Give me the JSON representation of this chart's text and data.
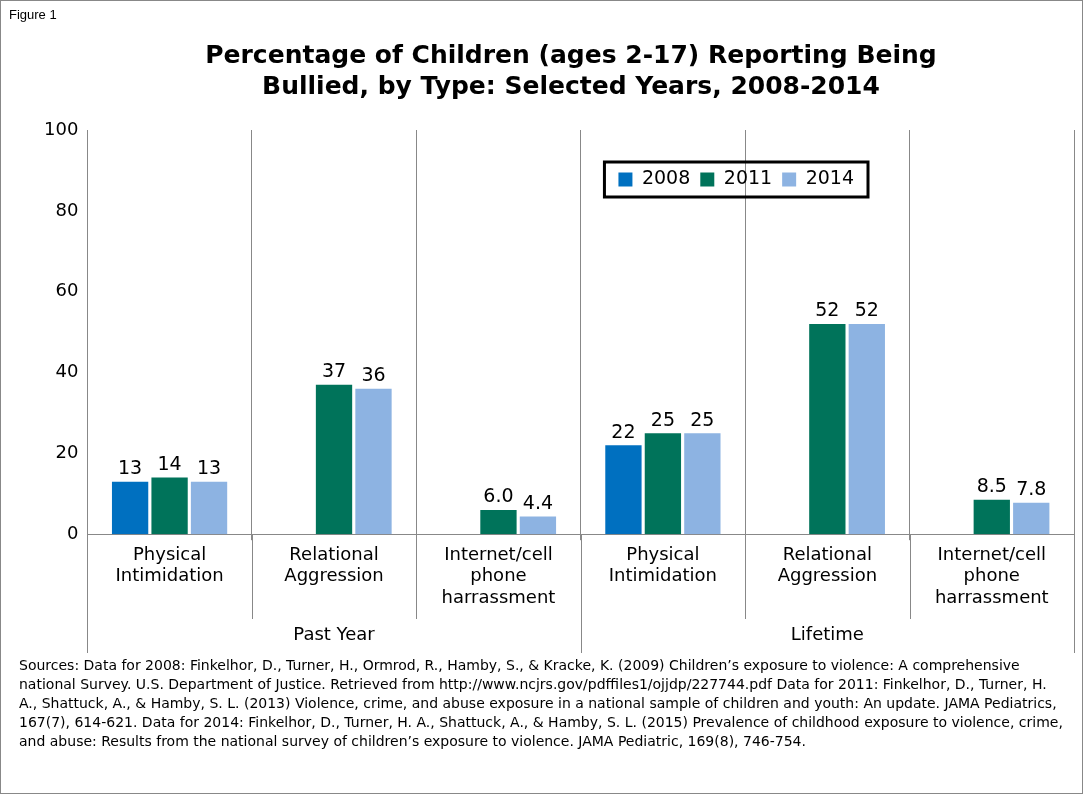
{
  "chart_data": {
    "type": "bar",
    "title": "Percentage of Children (ages 2-17) Reporting Being Bullied, by Type: Selected Years, 2008-2014",
    "categories": [
      "Physical Intimidation",
      "Relational Aggression",
      "Internet/cell phone harrassment",
      "Physical Intimidation",
      "Relational Aggression",
      "Internet/cell phone harrassment"
    ],
    "series": [
      {
        "name": "2008",
        "color": "#0070c0",
        "values": [
          13,
          null,
          null,
          22,
          null,
          null
        ],
        "value_labels": [
          "13",
          null,
          null,
          "22",
          null,
          null
        ]
      },
      {
        "name": "2011",
        "color": "#00735a",
        "values": [
          14,
          37,
          6.0,
          25,
          52,
          8.5
        ],
        "value_labels": [
          "14",
          "37",
          "6.0",
          "25",
          "52",
          "8.5"
        ]
      },
      {
        "name": "2014",
        "color": "#8db3e2",
        "values": [
          13,
          36,
          4.4,
          25,
          52,
          7.8
        ],
        "value_labels": [
          "13",
          "36",
          "4.4",
          "25",
          "52",
          "7.8"
        ]
      }
    ],
    "ylim": [
      0,
      100
    ],
    "yticks": [
      0,
      20,
      40,
      60,
      80,
      100
    ],
    "grid": "x",
    "legend": "top right",
    "annotations": [
      "Figure 1",
      "Past Year",
      "Lifetime",
      "Sources: Data for 2008: Finkelhor, D., Turner, H., Ormrod, R., Hamby, S., & Kracke, K. (2009) Children’s exposure to violence: A comprehensive national Survey. U.S. Department of Justice. Retrieved from http://www.ncjrs.gov/pdffiles1/ojjdp/227744.pdf Data for 2011: Finkelhor, D., Turner, H. A., Shattuck, A., & Hamby, S. L. (2013) Violence, crime, and abuse exposure in a national sample of children and youth: An update. JAMA Pediatrics, 167(7), 614-621. Data for 2014: Finkelhor, D., Turner, H. A., Shattuck, A., & Hamby, S. L. (2015) Prevalence of childhood exposure to violence, crime, and abuse: Results from the national survey of children’s exposure to violence. JAMA Pediatric, 169(8), 746-754."
    ]
  }
}
